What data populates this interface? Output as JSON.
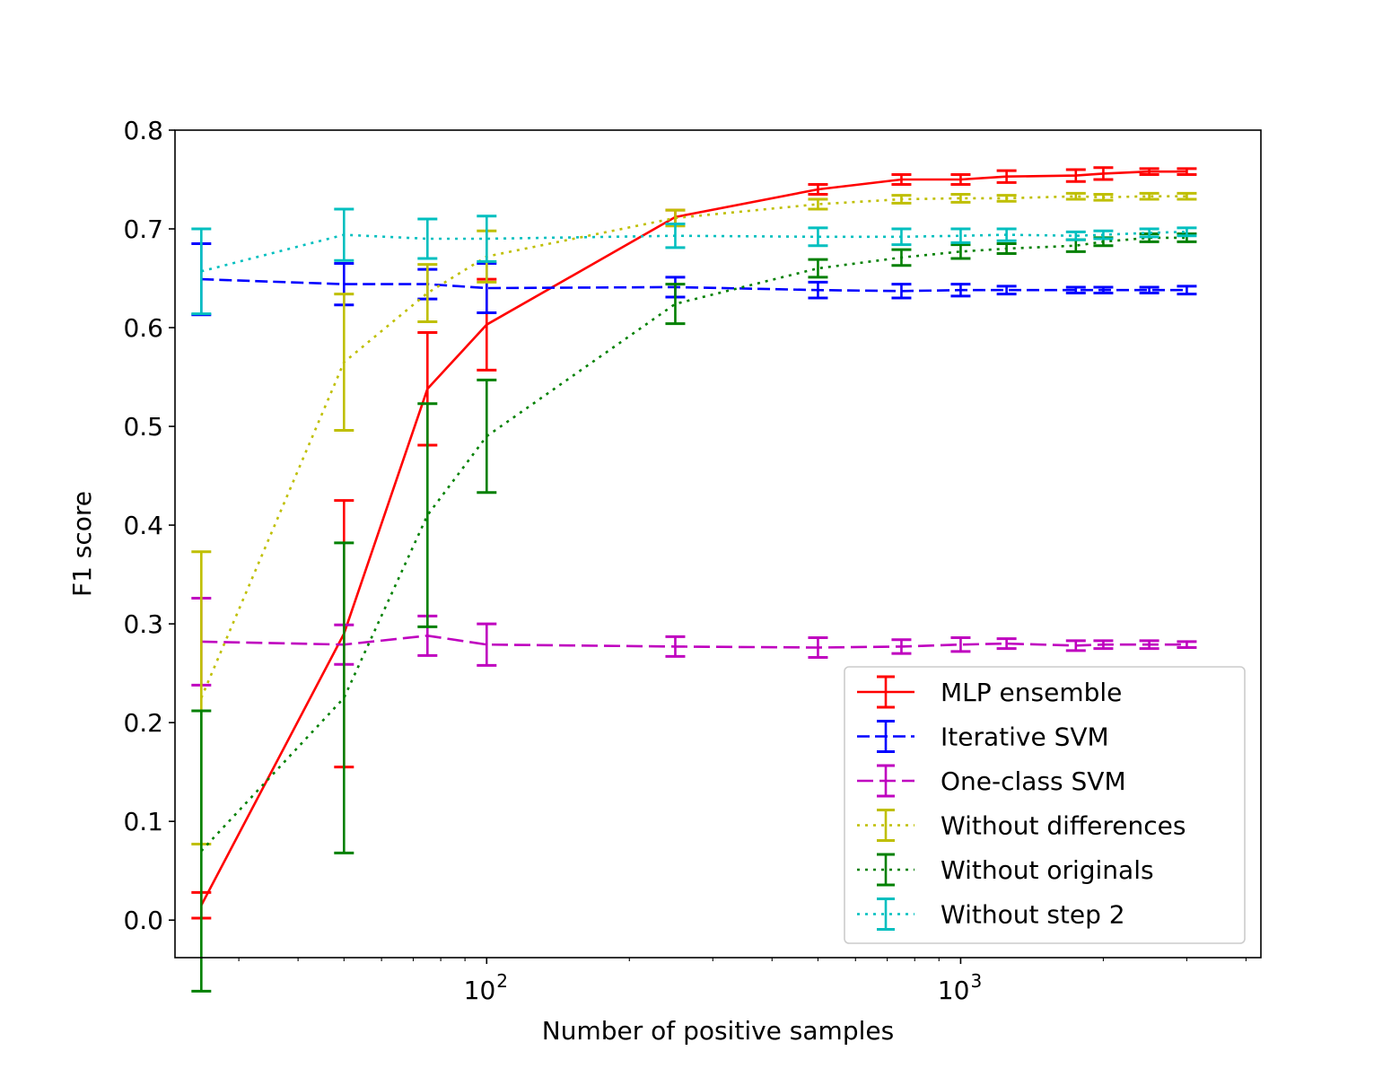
{
  "chart_data": {
    "type": "line",
    "xscale": "log",
    "xlim": [
      22,
      4300
    ],
    "ylim": [
      -0.038,
      0.8
    ],
    "xlabel": "Number of positive samples",
    "ylabel": "F1 score",
    "x_major_ticks": [
      {
        "value": 100,
        "base": "10",
        "exp": "2"
      },
      {
        "value": 1000,
        "base": "10",
        "exp": "3"
      }
    ],
    "y_ticks": [
      "0.0",
      "0.1",
      "0.2",
      "0.3",
      "0.4",
      "0.5",
      "0.6",
      "0.7",
      "0.8"
    ],
    "legend_position": "lower right",
    "series": [
      {
        "name": "MLP ensemble",
        "color": "#ff0000",
        "dash": "solid",
        "x": [
          25,
          50,
          75,
          100,
          250,
          500,
          750,
          1000,
          1250,
          1750,
          2000,
          2500,
          3000
        ],
        "y": [
          0.015,
          0.29,
          0.538,
          0.603,
          0.712,
          0.74,
          0.75,
          0.75,
          0.753,
          0.754,
          0.756,
          0.758,
          0.758
        ],
        "err": [
          0.013,
          0.135,
          0.057,
          0.046,
          0.007,
          0.005,
          0.005,
          0.005,
          0.006,
          0.006,
          0.006,
          0.003,
          0.003
        ]
      },
      {
        "name": "Iterative SVM",
        "color": "#0000ff",
        "dash": "dashed",
        "x": [
          25,
          50,
          75,
          100,
          250,
          500,
          750,
          1000,
          1250,
          1750,
          2000,
          2500,
          3000
        ],
        "y": [
          0.649,
          0.644,
          0.644,
          0.64,
          0.641,
          0.638,
          0.637,
          0.638,
          0.638,
          0.638,
          0.638,
          0.638,
          0.638
        ],
        "err": [
          0.036,
          0.021,
          0.015,
          0.025,
          0.01,
          0.008,
          0.007,
          0.006,
          0.004,
          0.003,
          0.003,
          0.003,
          0.004
        ]
      },
      {
        "name": "One-class SVM",
        "color": "#bf00bf",
        "dash": "longdash",
        "x": [
          25,
          50,
          75,
          100,
          250,
          500,
          750,
          1000,
          1250,
          1750,
          2000,
          2500,
          3000
        ],
        "y": [
          0.282,
          0.279,
          0.288,
          0.279,
          0.277,
          0.276,
          0.277,
          0.279,
          0.28,
          0.278,
          0.279,
          0.279,
          0.279
        ],
        "err": [
          0.044,
          0.02,
          0.02,
          0.021,
          0.01,
          0.01,
          0.007,
          0.007,
          0.005,
          0.005,
          0.004,
          0.004,
          0.003
        ]
      },
      {
        "name": "Without differences",
        "color": "#bfbf00",
        "dash": "dotted",
        "x": [
          25,
          50,
          75,
          100,
          250,
          500,
          750,
          1000,
          1250,
          1750,
          2000,
          2500,
          3000
        ],
        "y": [
          0.225,
          0.565,
          0.635,
          0.672,
          0.711,
          0.725,
          0.73,
          0.731,
          0.731,
          0.733,
          0.732,
          0.733,
          0.733
        ],
        "err": [
          0.148,
          0.069,
          0.029,
          0.026,
          0.008,
          0.005,
          0.004,
          0.004,
          0.003,
          0.003,
          0.003,
          0.003,
          0.003
        ]
      },
      {
        "name": "Without originals",
        "color": "#008000",
        "dash": "dotted",
        "x": [
          25,
          50,
          75,
          100,
          250,
          500,
          750,
          1000,
          1250,
          1750,
          2000,
          2500,
          3000
        ],
        "y": [
          0.07,
          0.225,
          0.41,
          0.49,
          0.624,
          0.66,
          0.671,
          0.677,
          0.68,
          0.683,
          0.687,
          0.691,
          0.691
        ],
        "err": [
          0.142,
          0.157,
          0.113,
          0.057,
          0.02,
          0.009,
          0.008,
          0.007,
          0.005,
          0.006,
          0.004,
          0.004,
          0.004
        ]
      },
      {
        "name": "Without step 2",
        "color": "#00bfbf",
        "dash": "dotted",
        "x": [
          25,
          50,
          75,
          100,
          250,
          500,
          750,
          1000,
          1250,
          1750,
          2000,
          2500,
          3000
        ],
        "y": [
          0.657,
          0.694,
          0.69,
          0.69,
          0.693,
          0.692,
          0.692,
          0.693,
          0.694,
          0.693,
          0.694,
          0.696,
          0.697
        ],
        "err": [
          0.043,
          0.026,
          0.02,
          0.023,
          0.012,
          0.009,
          0.008,
          0.007,
          0.006,
          0.004,
          0.004,
          0.004,
          0.004
        ]
      }
    ]
  }
}
